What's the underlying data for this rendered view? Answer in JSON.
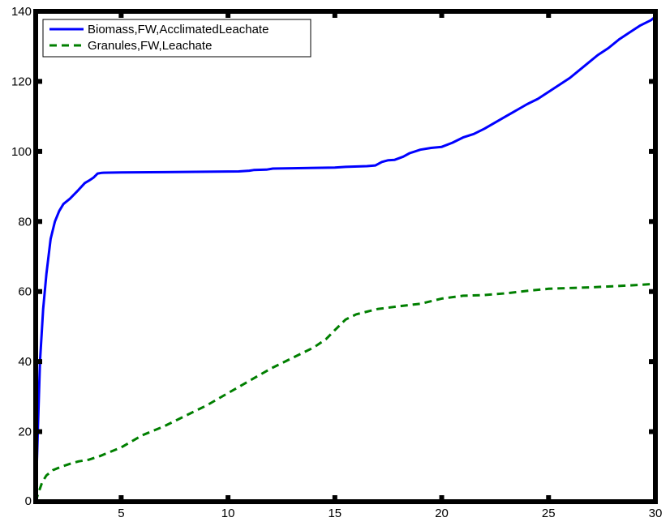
{
  "chart_data": {
    "type": "line",
    "title": "",
    "xlabel": "",
    "ylabel": "",
    "xlim": [
      1,
      30
    ],
    "ylim": [
      0,
      140
    ],
    "xticks": [
      5,
      10,
      15,
      20,
      25,
      30
    ],
    "yticks": [
      0,
      20,
      40,
      60,
      80,
      100,
      120,
      140
    ],
    "grid": false,
    "legend_position": "top-left",
    "series": [
      {
        "name": "Biomass,FW,AcclimatedLeachate",
        "color": "#0000ff",
        "style": "solid",
        "x": [
          1.0,
          1.1,
          1.2,
          1.35,
          1.5,
          1.7,
          1.9,
          2.1,
          2.3,
          2.6,
          3.0,
          3.3,
          3.5,
          3.7,
          3.9,
          4.1,
          5,
          7,
          9,
          10.5,
          11,
          11.2,
          11.8,
          12.1,
          13,
          15,
          15.5,
          16.5,
          16.9,
          17.2,
          17.5,
          17.8,
          18.2,
          18.5,
          19,
          19.5,
          20,
          20.5,
          21,
          21.5,
          22,
          23,
          24,
          24.5,
          25,
          26,
          26.8,
          27.3,
          27.8,
          28.3,
          28.8,
          29.3,
          29.8,
          30
        ],
        "y": [
          0,
          20,
          40,
          55,
          65,
          75,
          80,
          83,
          85,
          86.5,
          89,
          91,
          91.7,
          92.5,
          93.7,
          93.9,
          94,
          94.1,
          94.2,
          94.3,
          94.5,
          94.7,
          94.8,
          95.1,
          95.2,
          95.4,
          95.6,
          95.8,
          96,
          97,
          97.5,
          97.6,
          98.5,
          99.5,
          100.5,
          101,
          101.3,
          102.5,
          104,
          105,
          106.5,
          110,
          113.5,
          115,
          117,
          121,
          125,
          127.5,
          129.5,
          132,
          134,
          136,
          137.5,
          138.5
        ]
      },
      {
        "name": "Granules,FW,Leachate",
        "color": "#007f00",
        "style": "dashed",
        "x": [
          1.0,
          1.1,
          1.3,
          1.5,
          1.8,
          2.2,
          2.6,
          3.0,
          3.5,
          4.0,
          5,
          6,
          7,
          8,
          9,
          10,
          11,
          12,
          13,
          14,
          14.6,
          15,
          15.5,
          16,
          17,
          18,
          19,
          20,
          21,
          22,
          23,
          24,
          25,
          26,
          27,
          28,
          29,
          30
        ],
        "y": [
          0,
          2,
          5.5,
          7.5,
          9,
          10,
          10.8,
          11.5,
          12,
          13,
          15.5,
          19,
          21.5,
          24.5,
          27.5,
          31,
          34.5,
          38,
          41,
          44,
          46.5,
          49,
          52,
          53.5,
          55,
          55.8,
          56.5,
          58,
          58.8,
          59,
          59.5,
          60.2,
          60.8,
          61,
          61.2,
          61.5,
          61.8,
          62.2
        ]
      }
    ]
  }
}
